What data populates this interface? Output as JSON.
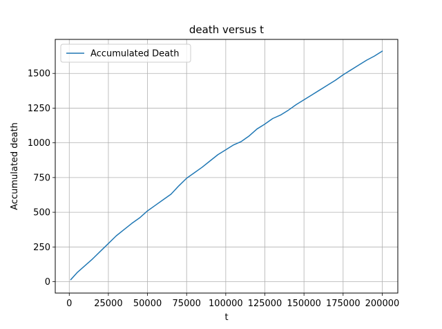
{
  "chart_data": {
    "type": "line",
    "title": "death versus t",
    "xlabel": "t",
    "ylabel": "Accumulated death",
    "xlim": [
      -8950,
      209950
    ],
    "ylim": [
      -82,
      1745
    ],
    "xticks": [
      0,
      25000,
      50000,
      75000,
      100000,
      125000,
      150000,
      175000,
      200000
    ],
    "yticks": [
      0,
      250,
      500,
      750,
      1000,
      1250,
      1500
    ],
    "grid": true,
    "legend": {
      "placement": "top-left"
    },
    "series": [
      {
        "name": "Accumulated Death",
        "color": "#1f77b4",
        "x": [
          1000,
          5000,
          10000,
          15000,
          20000,
          25000,
          30000,
          35000,
          40000,
          45000,
          50000,
          55000,
          60000,
          65000,
          70000,
          75000,
          80000,
          85000,
          90000,
          95000,
          100000,
          105000,
          110000,
          115000,
          120000,
          125000,
          130000,
          135000,
          140000,
          145000,
          150000,
          155000,
          160000,
          165000,
          170000,
          175000,
          180000,
          185000,
          190000,
          195000,
          200000
        ],
        "y": [
          15,
          65,
          115,
          165,
          220,
          275,
          330,
          375,
          420,
          460,
          510,
          550,
          590,
          630,
          690,
          745,
          785,
          825,
          870,
          915,
          950,
          985,
          1010,
          1050,
          1100,
          1135,
          1175,
          1200,
          1235,
          1275,
          1310,
          1345,
          1380,
          1415,
          1450,
          1490,
          1525,
          1560,
          1595,
          1625,
          1660
        ]
      }
    ]
  }
}
